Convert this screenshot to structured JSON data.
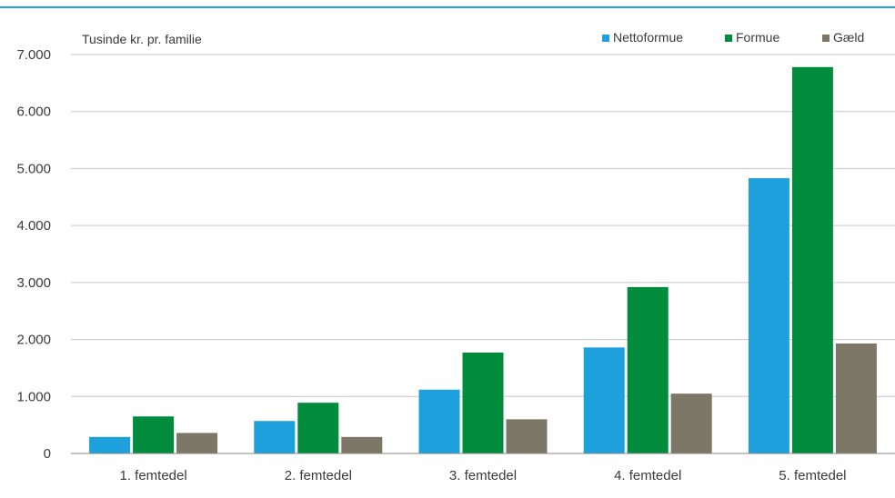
{
  "chart_data": {
    "type": "bar",
    "title": "",
    "unit_label": "Tusinde kr. pr. familie",
    "xlabel": "",
    "ylabel": "",
    "categories": [
      "1. femtedel",
      "2. femtedel",
      "3. femtedel",
      "4. femtedel",
      "5. femtedel"
    ],
    "series": [
      {
        "name": "Nettoformue",
        "color": "#1ea0dc",
        "values": [
          290,
          570,
          1120,
          1860,
          4830
        ]
      },
      {
        "name": "Formue",
        "color": "#008c3c",
        "values": [
          650,
          890,
          1770,
          2920,
          6780
        ]
      },
      {
        "name": "Gæld",
        "color": "#7d7768",
        "values": [
          360,
          290,
          600,
          1050,
          1930
        ]
      }
    ],
    "ylim": [
      0,
      7000
    ],
    "yticks": [
      "0",
      "1.000",
      "2.000",
      "3.000",
      "4.000",
      "5.000",
      "6.000",
      "7.000"
    ],
    "grid": true,
    "legend_position": "top-right",
    "colors": {
      "top_rule": "#1ea0dc",
      "grid": "#c8c8c8",
      "axis": "#888888"
    }
  }
}
